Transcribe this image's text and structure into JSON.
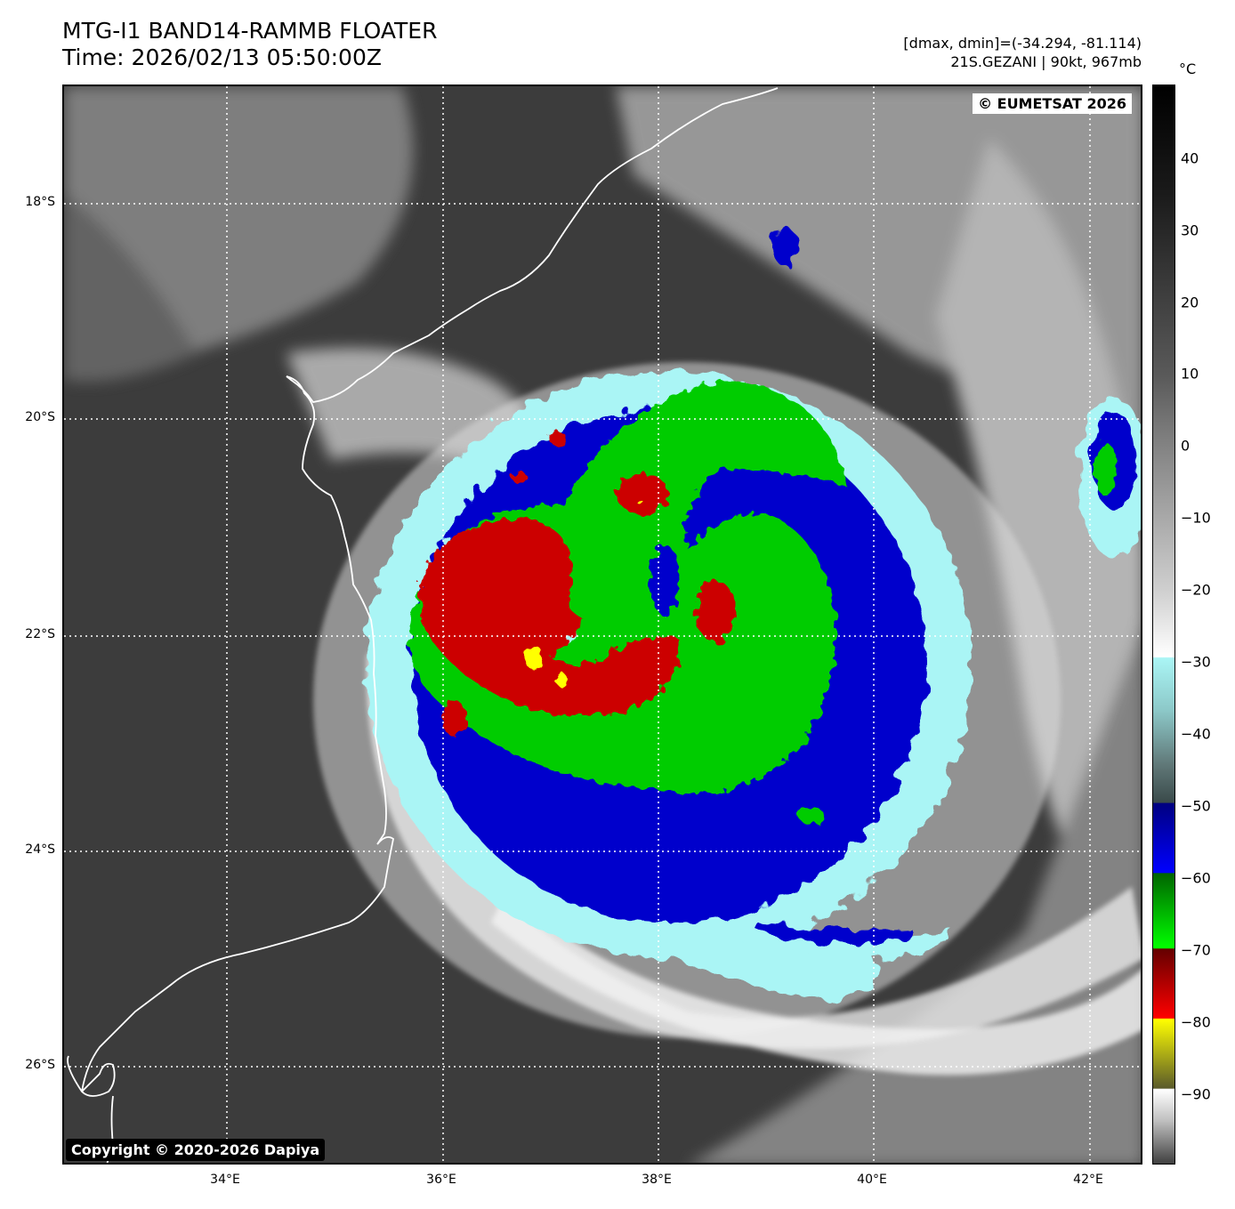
{
  "header": {
    "title_line1": "MTG-I1 BAND14-RAMMB FLOATER",
    "title_line2": "Time: 2026/02/13 05:50:00Z",
    "dminmax": "[dmax, dmin]=(-34.294, -81.114)",
    "storm": "21S.GEZANI | 90kt, 967mb"
  },
  "badges": {
    "eumetsat": "© EUMETSAT 2026",
    "copyright": "Copyright © 2020-2026 Dapiya"
  },
  "axes": {
    "lat_labels": [
      "18°S",
      "20°S",
      "22°S",
      "24°S",
      "26°S"
    ],
    "lon_labels": [
      "34°E",
      "36°E",
      "38°E",
      "40°E",
      "42°E"
    ]
  },
  "colorbar": {
    "unit": "°C",
    "ticks": [
      "40",
      "30",
      "20",
      "10",
      "0",
      "−10",
      "−20",
      "−30",
      "−40",
      "−50",
      "−60",
      "−70",
      "−80",
      "−90"
    ],
    "colors": {
      "red": "#cc0000",
      "green": "#00cc00",
      "blue": "#0000cc",
      "cyan": "#aaf5f5",
      "yellow": "#ffff00"
    }
  }
}
